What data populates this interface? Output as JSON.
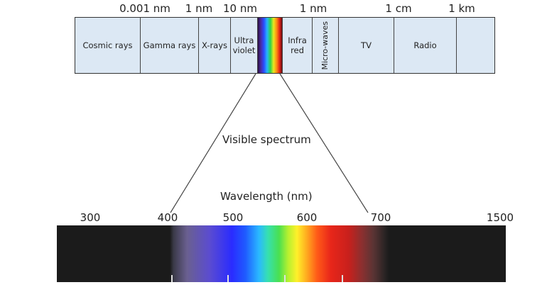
{
  "top_scale": {
    "labels": [
      "0.001 nm",
      "1 nm",
      "10 nm",
      "1 nm",
      "1 cm",
      "1 km"
    ]
  },
  "bands": [
    {
      "name": "Cosmic rays"
    },
    {
      "name": "Gamma rays"
    },
    {
      "name": "X-rays"
    },
    {
      "name": "Ultra violet"
    },
    {
      "name": ""
    },
    {
      "name": "Infra red"
    },
    {
      "name": "Micro-waves"
    },
    {
      "name": "TV"
    },
    {
      "name": "Radio"
    },
    {
      "name": ""
    }
  ],
  "visible_spectrum_label": "Visible spectrum",
  "wavelength_title": "Wavelength (nm)",
  "wavelength_ticks": [
    "300",
    "400",
    "500",
    "600",
    "700",
    "1500"
  ],
  "colors": {
    "band_fill": "#dce8f4",
    "bar_background": "#1b1b1b",
    "line": "#444444"
  }
}
